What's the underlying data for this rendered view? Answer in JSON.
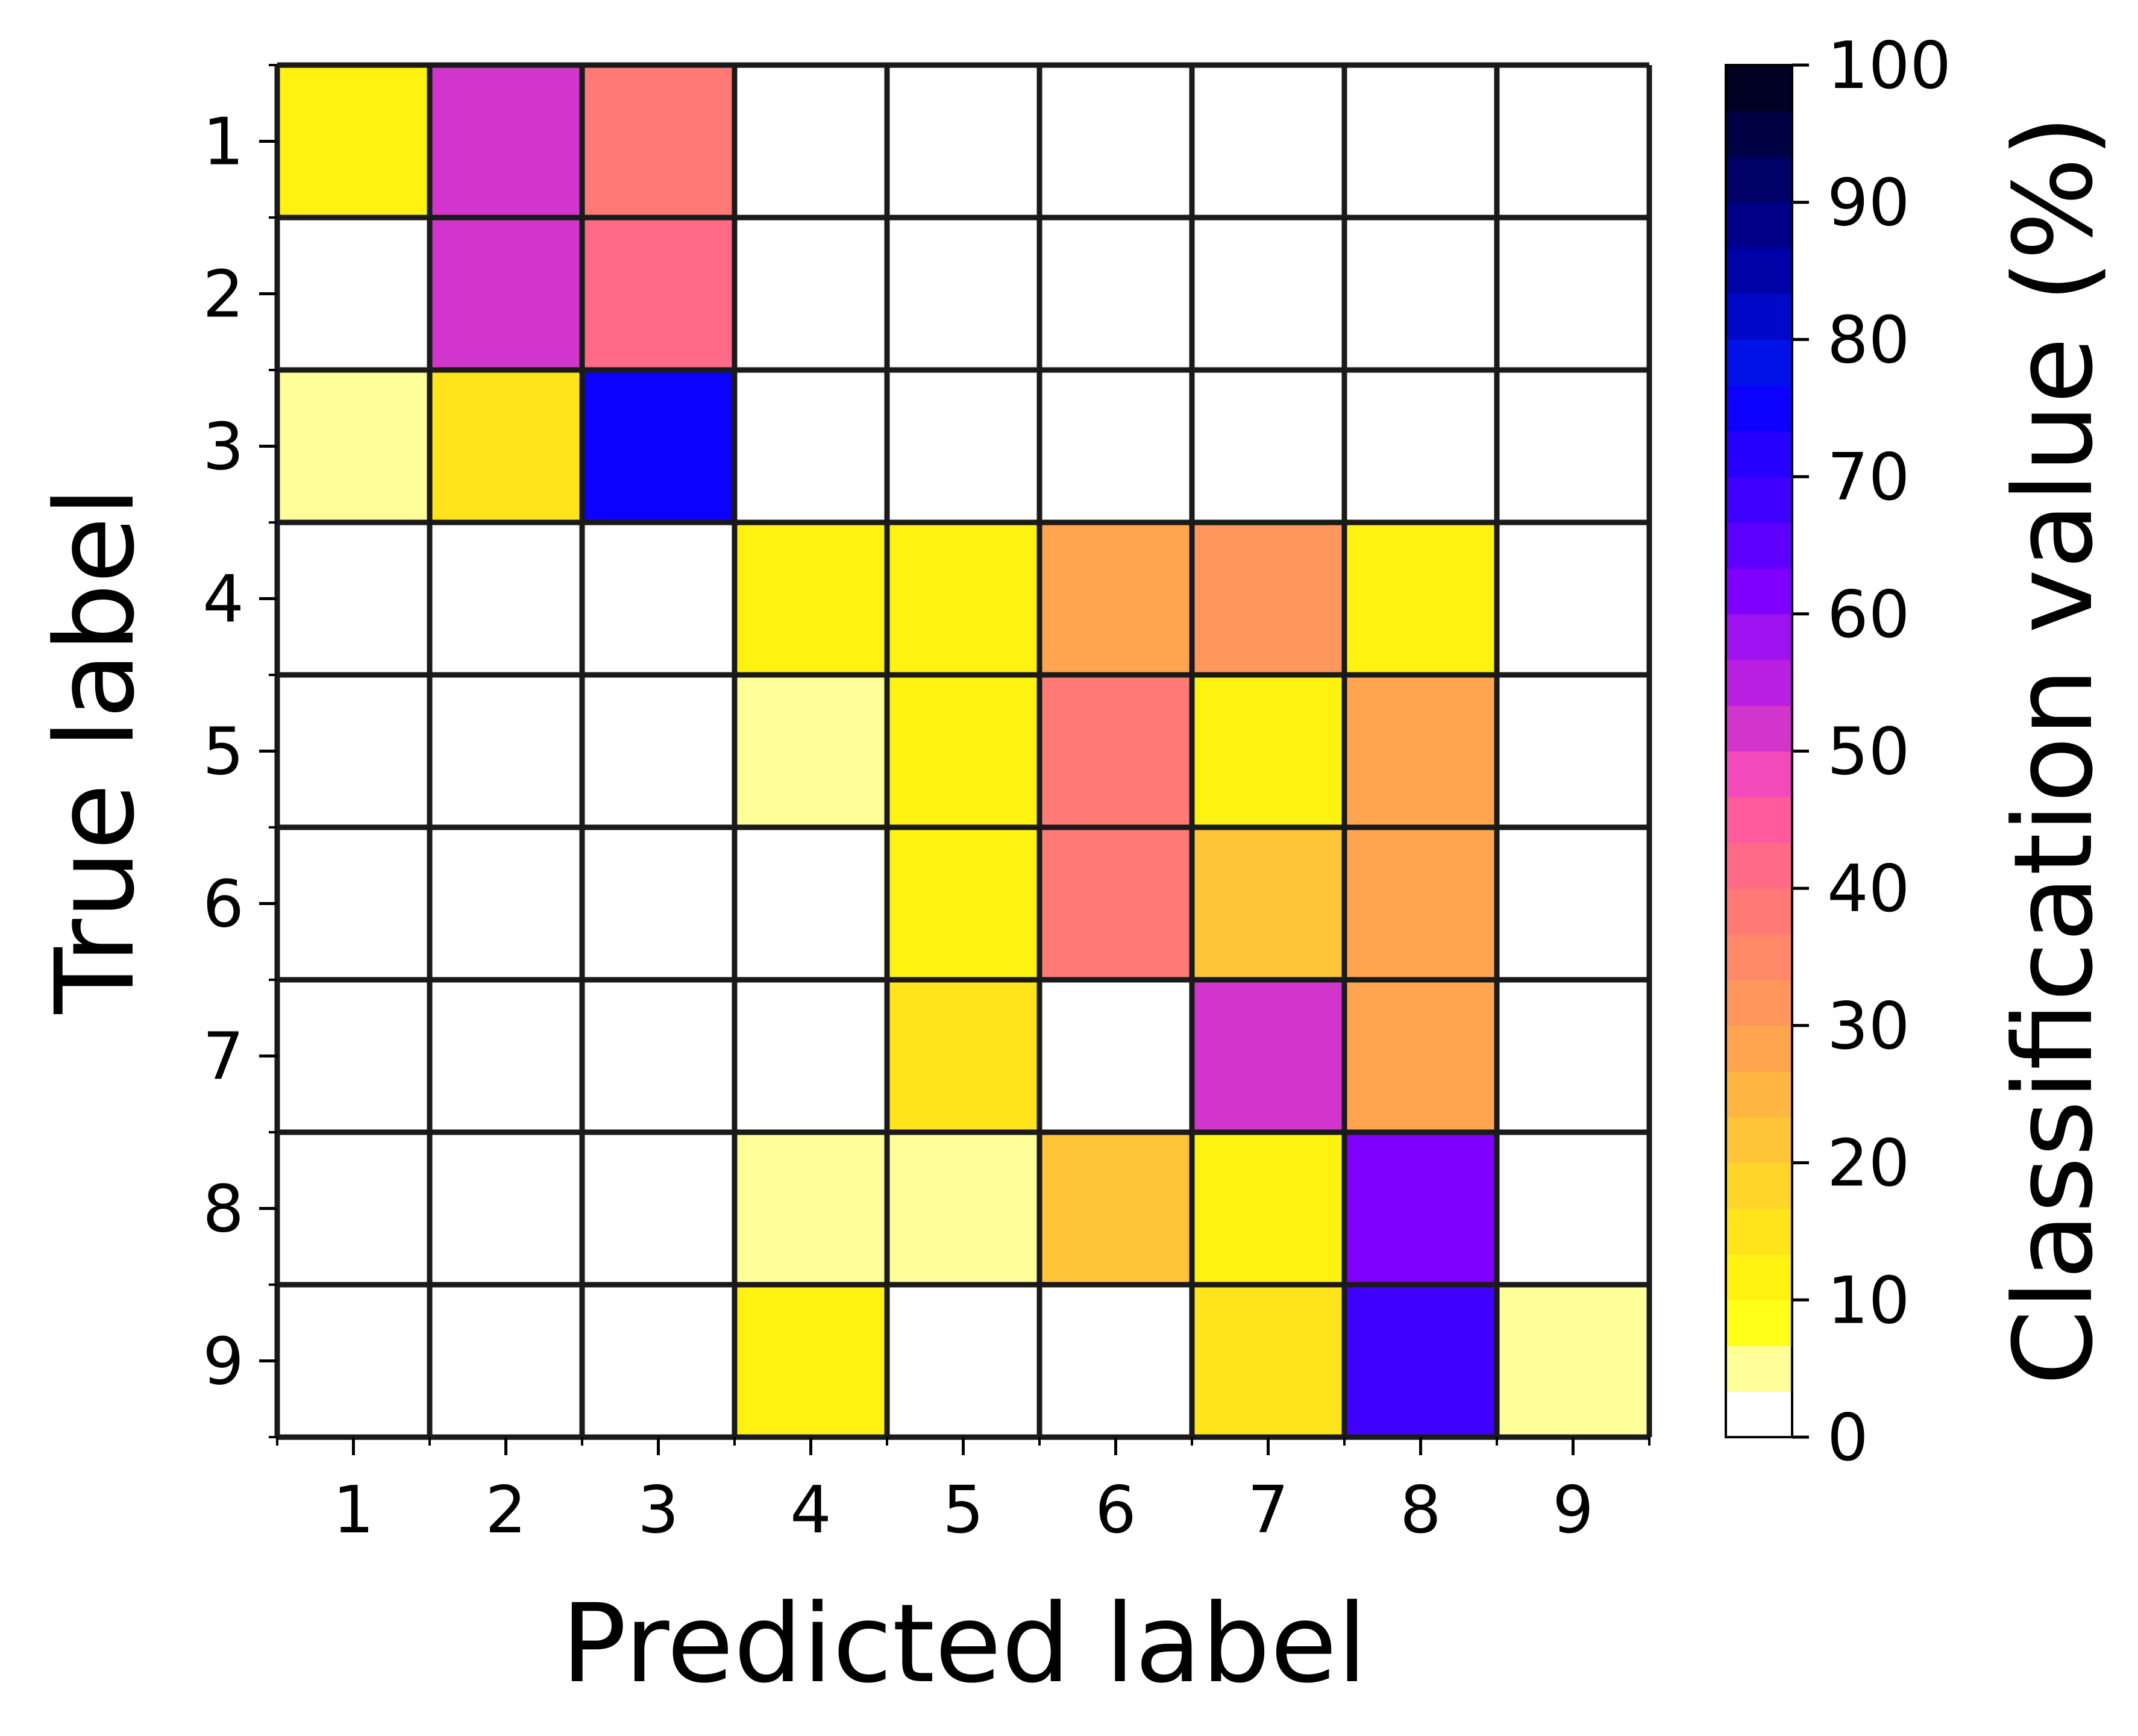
{
  "chart_data": {
    "type": "heatmap",
    "xlabel": "Predicted label",
    "ylabel": "True label",
    "x_categories": [
      "1",
      "2",
      "3",
      "4",
      "5",
      "6",
      "7",
      "8",
      "9"
    ],
    "y_categories": [
      "1",
      "2",
      "3",
      "4",
      "5",
      "6",
      "7",
      "8",
      "9"
    ],
    "values": [
      [
        10,
        53,
        37,
        null,
        null,
        null,
        null,
        null,
        null
      ],
      [
        null,
        53,
        42,
        null,
        null,
        null,
        null,
        null,
        null
      ],
      [
        5,
        15,
        75,
        null,
        null,
        null,
        null,
        null,
        null
      ],
      [
        null,
        null,
        null,
        10,
        10,
        28,
        32,
        10,
        null
      ],
      [
        null,
        null,
        null,
        5,
        10,
        37,
        10,
        28,
        null
      ],
      [
        null,
        null,
        null,
        null,
        10,
        37,
        20,
        28,
        null
      ],
      [
        null,
        null,
        null,
        null,
        15,
        null,
        53,
        28,
        null
      ],
      [
        null,
        null,
        null,
        5,
        5,
        20,
        10,
        60,
        null
      ],
      [
        null,
        null,
        null,
        10,
        null,
        null,
        15,
        67,
        5
      ]
    ],
    "colorbar": {
      "label": "Classification value (%)",
      "range": [
        0,
        100
      ],
      "step": 3.33,
      "ticks": [
        "0",
        "10",
        "20",
        "30",
        "40",
        "50",
        "60",
        "70",
        "80",
        "90",
        "100"
      ],
      "colors": [
        "#ffffff",
        "#ffff99",
        "#ffff1a",
        "#fff210",
        "#ffe41c",
        "#ffd52a",
        "#ffc437",
        "#ffb542",
        "#ffa54f",
        "#ff965c",
        "#ff8868",
        "#ff7a75",
        "#ff6a87",
        "#ff5a9d",
        "#f249bb",
        "#d235cc",
        "#b81fe0",
        "#9f12f0",
        "#7f00ff",
        "#5d00ff",
        "#3f00ff",
        "#2500ff",
        "#0c00ff",
        "#0012e8",
        "#0009c8",
        "#0002a8",
        "#000088",
        "#000066",
        "#000044",
        "#000022"
      ]
    }
  }
}
